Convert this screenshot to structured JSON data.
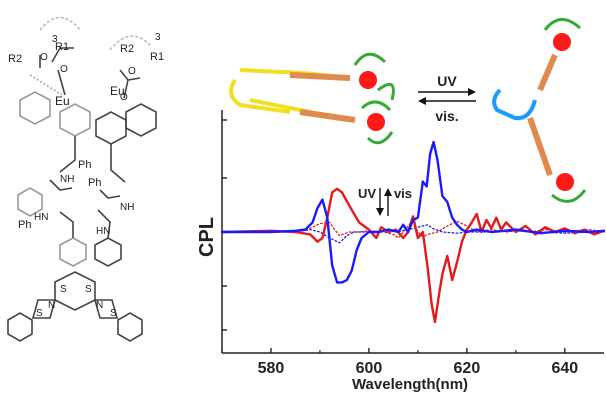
{
  "colors": {
    "uv_solid": "#e41a1c",
    "vis_solid": "#1a1aff",
    "axis": "#222222",
    "metal": "#ff1a1a",
    "ligand_yellow": "#f0e020",
    "ligand_blue": "#1a9cff",
    "bridge": "#e08a50"
  },
  "structure": {
    "metal_labels": [
      "Eu",
      "Eu"
    ],
    "group_labels": {
      "r2_left": "R2",
      "r1_left": "R1",
      "r2_right": "R2",
      "r1_right": "R1",
      "count_left": "3",
      "count_right": "3",
      "ph_left_1": "Ph",
      "ph_left_2": "Ph",
      "ph_center": "Ph",
      "o_1": "O",
      "o_2": "O",
      "o_3": "O",
      "o_4": "O",
      "nh_1": "NH",
      "nh_2": "NH",
      "hn_1": "HN",
      "hn_2": "HN",
      "s_1": "S",
      "s_2": "S",
      "s_3": "S",
      "s_4": "S",
      "n_1": "N",
      "n_2": "N"
    }
  },
  "scheme": {
    "forward_label": "UV",
    "reverse_label": "vis."
  },
  "inset": {
    "uv_label": "UV",
    "vis_label": "vis"
  },
  "chart_data": {
    "type": "line",
    "xlabel": "Wavelength(nm)",
    "ylabel": "CPL",
    "xlim": [
      570,
      648
    ],
    "ylim": [
      -1.0,
      1.0
    ],
    "x_ticks": [
      580,
      600,
      620,
      640
    ],
    "grid": false,
    "series": [
      {
        "color": "#e41a1c",
        "style": "solid",
        "points": [
          [
            570,
            0.0
          ],
          [
            580,
            0.01
          ],
          [
            585,
            0.0
          ],
          [
            588,
            -0.02
          ],
          [
            589.5,
            -0.08
          ],
          [
            590.5,
            -0.05
          ],
          [
            591.5,
            0.12
          ],
          [
            592.5,
            0.33
          ],
          [
            593.5,
            0.36
          ],
          [
            594.5,
            0.33
          ],
          [
            596,
            0.22
          ],
          [
            598,
            0.08
          ],
          [
            600,
            0.02
          ],
          [
            601.5,
            -0.05
          ],
          [
            602.5,
            0.04
          ],
          [
            604,
            0.0
          ],
          [
            605.5,
            0.02
          ],
          [
            607,
            -0.05
          ],
          [
            608,
            0.0
          ],
          [
            609,
            0.13
          ],
          [
            610,
            -0.05
          ],
          [
            611,
            0.0
          ],
          [
            612,
            -0.3
          ],
          [
            612.8,
            -0.6
          ],
          [
            613.5,
            -0.75
          ],
          [
            614.2,
            -0.55
          ],
          [
            615,
            -0.35
          ],
          [
            616,
            -0.2
          ],
          [
            617,
            -0.4
          ],
          [
            618,
            -0.25
          ],
          [
            619,
            -0.08
          ],
          [
            620,
            0.02
          ],
          [
            621,
            0.08
          ],
          [
            622,
            0.15
          ],
          [
            623,
            0.0
          ],
          [
            624,
            0.1
          ],
          [
            625,
            0.03
          ],
          [
            626,
            0.12
          ],
          [
            627,
            0.02
          ],
          [
            628,
            0.08
          ],
          [
            630,
            0.0
          ],
          [
            632,
            0.05
          ],
          [
            634,
            -0.02
          ],
          [
            636,
            0.04
          ],
          [
            638,
            0.0
          ],
          [
            640,
            0.03
          ],
          [
            642,
            -0.01
          ],
          [
            644,
            0.02
          ],
          [
            646,
            -0.02
          ],
          [
            648,
            0.01
          ]
        ]
      },
      {
        "color": "#1a1aff",
        "style": "solid",
        "points": [
          [
            570,
            0.0
          ],
          [
            580,
            0.0
          ],
          [
            585,
            0.01
          ],
          [
            587,
            0.02
          ],
          [
            588.5,
            0.08
          ],
          [
            589.5,
            0.2
          ],
          [
            590.5,
            0.27
          ],
          [
            591.5,
            0.12
          ],
          [
            592.5,
            -0.28
          ],
          [
            593.5,
            -0.42
          ],
          [
            594.5,
            -0.42
          ],
          [
            595.5,
            -0.4
          ],
          [
            596.5,
            -0.32
          ],
          [
            597.5,
            -0.15
          ],
          [
            598.5,
            -0.05
          ],
          [
            600,
            0.0
          ],
          [
            602,
            0.0
          ],
          [
            604,
            0.02
          ],
          [
            606,
            0.0
          ],
          [
            607,
            0.06
          ],
          [
            608,
            0.0
          ],
          [
            609,
            0.1
          ],
          [
            610,
            0.12
          ],
          [
            611,
            0.42
          ],
          [
            611.8,
            0.38
          ],
          [
            612.5,
            0.65
          ],
          [
            613.2,
            0.75
          ],
          [
            614,
            0.6
          ],
          [
            615,
            0.3
          ],
          [
            616,
            0.25
          ],
          [
            617,
            0.12
          ],
          [
            618,
            0.06
          ],
          [
            619,
            0.02
          ],
          [
            620,
            0.0
          ],
          [
            622,
            0.02
          ],
          [
            625,
            0.0
          ],
          [
            630,
            0.02
          ],
          [
            635,
            -0.01
          ],
          [
            640,
            0.01
          ],
          [
            645,
            0.0
          ],
          [
            648,
            0.01
          ]
        ]
      },
      {
        "color": "#e41a1c",
        "style": "dotted",
        "points": [
          [
            570,
            0.0
          ],
          [
            580,
            0.0
          ],
          [
            585,
            0.01
          ],
          [
            588,
            0.03
          ],
          [
            590,
            0.07
          ],
          [
            592,
            0.08
          ],
          [
            593,
            0.02
          ],
          [
            594,
            -0.03
          ],
          [
            596,
            0.0
          ],
          [
            598,
            0.0
          ],
          [
            600,
            0.01
          ],
          [
            603,
            0.0
          ],
          [
            605,
            -0.02
          ],
          [
            606,
            -0.05
          ],
          [
            607,
            0.0
          ],
          [
            609,
            0.1
          ],
          [
            610,
            0.0
          ],
          [
            611,
            -0.04
          ],
          [
            612,
            -0.02
          ],
          [
            614,
            0.0
          ],
          [
            616,
            0.05
          ],
          [
            618,
            0.09
          ],
          [
            620,
            0.05
          ],
          [
            622,
            0.0
          ],
          [
            625,
            0.02
          ],
          [
            628,
            0.0
          ],
          [
            630,
            0.01
          ],
          [
            633,
            0.0
          ],
          [
            636,
            0.02
          ],
          [
            640,
            0.0
          ],
          [
            645,
            0.02
          ],
          [
            648,
            0.0
          ]
        ]
      },
      {
        "color": "#1a1aff",
        "style": "dotted",
        "points": [
          [
            570,
            0.0
          ],
          [
            580,
            0.0
          ],
          [
            585,
            0.0
          ],
          [
            588,
            0.02
          ],
          [
            590,
            0.0
          ],
          [
            592,
            -0.05
          ],
          [
            594,
            -0.09
          ],
          [
            595.5,
            -0.03
          ],
          [
            597,
            0.0
          ],
          [
            600,
            0.0
          ],
          [
            603,
            0.01
          ],
          [
            606,
            0.0
          ],
          [
            609,
            0.03
          ],
          [
            611,
            0.05
          ],
          [
            612,
            0.06
          ],
          [
            613,
            0.03
          ],
          [
            615,
            0.0
          ],
          [
            618,
            -0.01
          ],
          [
            620,
            0.0
          ],
          [
            625,
            0.0
          ],
          [
            630,
            0.01
          ],
          [
            635,
            0.0
          ],
          [
            640,
            -0.01
          ],
          [
            645,
            0.0
          ],
          [
            648,
            0.0
          ]
        ]
      }
    ]
  }
}
